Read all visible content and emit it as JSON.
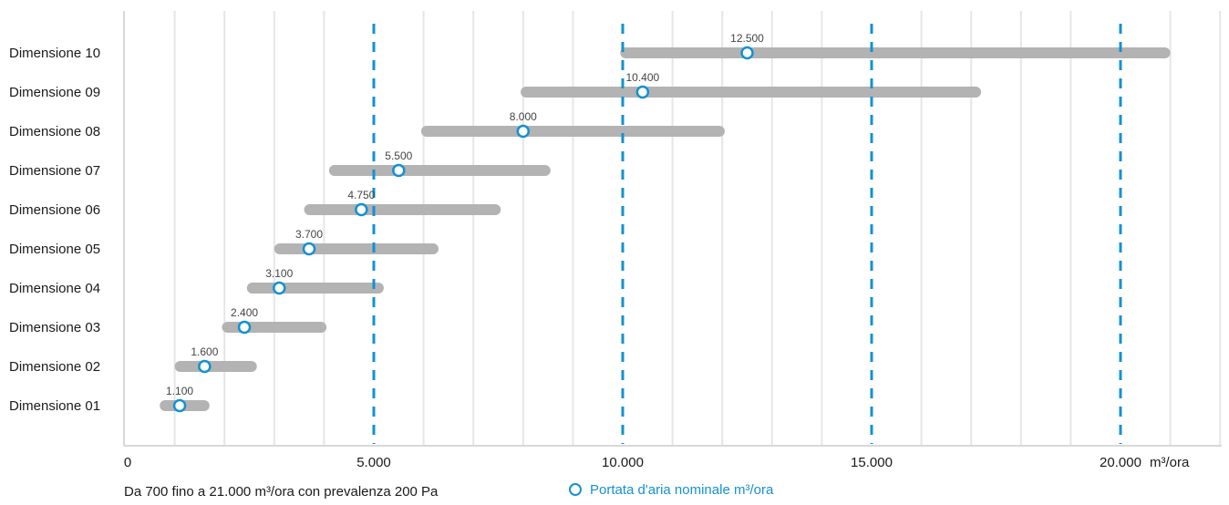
{
  "chart_data": {
    "type": "range-bar",
    "categories": [
      "Dimensione 01",
      "Dimensione 02",
      "Dimensione 03",
      "Dimensione 04",
      "Dimensione 05",
      "Dimensione 06",
      "Dimensione 07",
      "Dimensione 08",
      "Dimensione 09",
      "Dimensione 10"
    ],
    "ranges": [
      [
        700,
        1700
      ],
      [
        1000,
        2650
      ],
      [
        1950,
        4050
      ],
      [
        2450,
        5200
      ],
      [
        3000,
        6300
      ],
      [
        3600,
        7550
      ],
      [
        4100,
        8550
      ],
      [
        5950,
        12050
      ],
      [
        7950,
        17200
      ],
      [
        9950,
        21000
      ]
    ],
    "nominal": [
      1100,
      1600,
      2400,
      3100,
      3700,
      4750,
      5500,
      8000,
      10400,
      12500
    ],
    "nominal_labels": [
      "1.100",
      "1.600",
      "2.400",
      "3.100",
      "3.700",
      "4.750",
      "5.500",
      "8.000",
      "10.400",
      "12.500"
    ],
    "xlim": [
      0,
      22500
    ],
    "x_ticks": [
      0,
      5000,
      10000,
      15000,
      20000
    ],
    "x_tick_labels": [
      "0",
      "5.000",
      "10.000",
      "15.000",
      "20.000"
    ],
    "x_unit_label": "m³/ora",
    "minor_grid_step": 1000,
    "dashed_gridlines": [
      5000,
      10000,
      15000,
      20000
    ],
    "grid": true,
    "legend_position": "bottom-center",
    "colors": {
      "range_bar": "#b3b3b3",
      "nominal_marker": "#1391d3",
      "dashed_line": "#1391d3",
      "grid": "#e6e6e6",
      "axis": "#d8d8d8",
      "text": "#1a1a1a",
      "value_label": "#444444"
    }
  },
  "footer": {
    "note": "Da 700 fino a 21.000 m³/ora con prevalenza 200 Pa",
    "legend_label": "Portata d'aria nominale m³/ora"
  }
}
